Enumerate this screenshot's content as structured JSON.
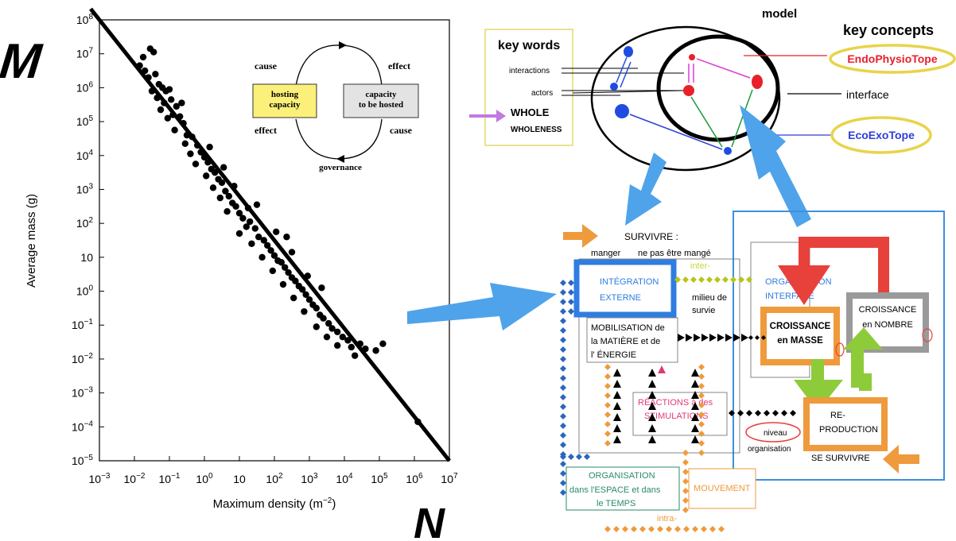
{
  "big_letters": {
    "m": "M",
    "n": "N"
  },
  "chart_data": {
    "type": "scatter",
    "xlabel_main": "Maximum density (m",
    "xlabel_exp": "−2",
    "xlabel_end": ")",
    "ylabel": "Average mass (g)",
    "x_scale": "log",
    "y_scale": "log",
    "xlim": [
      0.001,
      10000000
    ],
    "ylim": [
      1e-05,
      100000000
    ],
    "x_ticks": [
      {
        "value": 0.001,
        "base": "10",
        "exp": "−3"
      },
      {
        "value": 0.01,
        "base": "10",
        "exp": "−2"
      },
      {
        "value": 0.1,
        "base": "10",
        "exp": "−1"
      },
      {
        "value": 1,
        "base": "10",
        "exp": "0"
      },
      {
        "value": 10,
        "base": "10",
        "exp": ""
      },
      {
        "value": 100,
        "base": "10",
        "exp": "2"
      },
      {
        "value": 1000,
        "base": "10",
        "exp": "3"
      },
      {
        "value": 10000,
        "base": "10",
        "exp": "4"
      },
      {
        "value": 100000,
        "base": "10",
        "exp": "5"
      },
      {
        "value": 1000000,
        "base": "10",
        "exp": "6"
      },
      {
        "value": 10000000,
        "base": "10",
        "exp": "7"
      }
    ],
    "y_ticks": [
      {
        "value": 100000000,
        "base": "10",
        "exp": "8"
      },
      {
        "value": 10000000,
        "base": "10",
        "exp": "7"
      },
      {
        "value": 1000000,
        "base": "10",
        "exp": "6"
      },
      {
        "value": 100000,
        "base": "10",
        "exp": "5"
      },
      {
        "value": 10000,
        "base": "10",
        "exp": "4"
      },
      {
        "value": 1000,
        "base": "10",
        "exp": "3"
      },
      {
        "value": 100,
        "base": "10",
        "exp": "2"
      },
      {
        "value": 10,
        "base": "10",
        "exp": ""
      },
      {
        "value": 1,
        "base": "10",
        "exp": "0"
      },
      {
        "value": 0.1,
        "base": "10",
        "exp": "−1"
      },
      {
        "value": 0.01,
        "base": "10",
        "exp": "−2"
      },
      {
        "value": 0.001,
        "base": "10",
        "exp": "−3"
      },
      {
        "value": 0.0001,
        "base": "10",
        "exp": "−4"
      },
      {
        "value": 1e-05,
        "base": "10",
        "exp": "−5"
      }
    ],
    "fit_line": [
      [
        0.001,
        100000000
      ],
      [
        10000000,
        1e-05
      ]
    ],
    "points_log10": [
      [
        -1.55,
        7.15
      ],
      [
        -1.45,
        7.05
      ],
      [
        -1.85,
        6.65
      ],
      [
        -1.7,
        6.5
      ],
      [
        -1.6,
        6.3
      ],
      [
        -1.4,
        6.4
      ],
      [
        -1.3,
        6.1
      ],
      [
        -1.2,
        6.0
      ],
      [
        -1.1,
        5.9
      ],
      [
        -1.0,
        5.95
      ],
      [
        -1.5,
        5.9
      ],
      [
        -1.35,
        5.7
      ],
      [
        -1.15,
        5.55
      ],
      [
        -0.95,
        5.65
      ],
      [
        -0.8,
        5.45
      ],
      [
        -0.9,
        5.2
      ],
      [
        -1.25,
        5.35
      ],
      [
        -1.05,
        5.1
      ],
      [
        -0.7,
        5.15
      ],
      [
        -0.6,
        4.95
      ],
      [
        -0.85,
        4.75
      ],
      [
        -0.5,
        4.6
      ],
      [
        -0.35,
        4.55
      ],
      [
        -0.55,
        4.35
      ],
      [
        -0.2,
        4.3
      ],
      [
        -0.1,
        4.1
      ],
      [
        -0.4,
        4.05
      ],
      [
        0.0,
        3.95
      ],
      [
        0.1,
        3.8
      ],
      [
        -0.25,
        3.75
      ],
      [
        0.2,
        3.6
      ],
      [
        0.3,
        3.5
      ],
      [
        0.05,
        3.4
      ],
      [
        0.4,
        3.3
      ],
      [
        0.5,
        3.2
      ],
      [
        0.25,
        3.05
      ],
      [
        0.6,
        2.95
      ],
      [
        0.45,
        2.75
      ],
      [
        0.7,
        2.8
      ],
      [
        0.8,
        2.6
      ],
      [
        0.9,
        2.5
      ],
      [
        0.65,
        2.35
      ],
      [
        1.0,
        2.3
      ],
      [
        1.1,
        2.15
      ],
      [
        1.3,
        2.05
      ],
      [
        1.2,
        1.9
      ],
      [
        1.45,
        1.85
      ],
      [
        1.0,
        1.7
      ],
      [
        1.55,
        1.6
      ],
      [
        1.7,
        1.5
      ],
      [
        1.35,
        1.4
      ],
      [
        1.8,
        1.35
      ],
      [
        1.9,
        1.2
      ],
      [
        2.0,
        1.05
      ],
      [
        1.65,
        1.0
      ],
      [
        2.1,
        0.9
      ],
      [
        2.2,
        0.85
      ],
      [
        2.3,
        0.7
      ],
      [
        1.95,
        0.6
      ],
      [
        2.4,
        0.55
      ],
      [
        2.5,
        0.4
      ],
      [
        2.6,
        0.3
      ],
      [
        2.25,
        0.2
      ],
      [
        2.7,
        0.15
      ],
      [
        2.8,
        0.05
      ],
      [
        2.9,
        -0.1
      ],
      [
        2.55,
        -0.2
      ],
      [
        3.0,
        -0.25
      ],
      [
        3.1,
        -0.4
      ],
      [
        3.2,
        -0.5
      ],
      [
        2.85,
        -0.6
      ],
      [
        3.3,
        -0.7
      ],
      [
        3.4,
        -0.8
      ],
      [
        3.55,
        -0.95
      ],
      [
        3.2,
        -1.05
      ],
      [
        3.65,
        -1.1
      ],
      [
        3.8,
        -1.2
      ],
      [
        3.5,
        -1.35
      ],
      [
        3.95,
        -1.35
      ],
      [
        4.1,
        -1.45
      ],
      [
        3.8,
        -1.6
      ],
      [
        4.2,
        -1.65
      ],
      [
        4.45,
        -1.55
      ],
      [
        4.6,
        -1.7
      ],
      [
        4.9,
        -1.75
      ],
      [
        5.1,
        -1.55
      ],
      [
        4.3,
        -1.9
      ],
      [
        0.55,
        3.65
      ],
      [
        0.85,
        3.1
      ],
      [
        1.25,
        2.45
      ],
      [
        1.5,
        2.55
      ],
      [
        2.35,
        1.6
      ],
      [
        2.5,
        1.15
      ],
      [
        2.95,
        0.45
      ],
      [
        3.35,
        0.1
      ],
      [
        2.05,
        1.75
      ],
      [
        0.15,
        4.25
      ],
      [
        -0.65,
        5.55
      ],
      [
        -1.75,
        6.9
      ],
      [
        6.1,
        -3.85
      ]
    ]
  },
  "cycle": {
    "cause_top": "cause",
    "effect_top": "effect",
    "hosting": "hosting capacity",
    "hosted": "capacity to be hosted",
    "effect_bottom": "effect",
    "cause_bottom": "cause",
    "governance": "governance"
  },
  "keywords_box": {
    "title": "key words",
    "interactions": "interactions",
    "actors": "actors",
    "whole": "WHOLE",
    "wholeness": "WHOLENESS"
  },
  "model": {
    "title": "model",
    "interface": "interface"
  },
  "key_concepts": {
    "title": "key concepts",
    "endo": "EndoPhysioTope",
    "eco": "EcoExoTope",
    "endo_color": "#e8202a",
    "eco_color": "#2e3fd6",
    "oval_border": "#e8d44a"
  },
  "lower": {
    "survivre": "SURVIVRE :",
    "manger": "manger",
    "ne_pas": "ne pas être mangé",
    "inter": "inter-",
    "integration": "INTÉGRATION",
    "externe": "EXTERNE",
    "milieu1": "milieu de",
    "milieu2": "survie",
    "mobilisation1": "MOBILISATION de",
    "mobilisation2": "la MATIÈRE et de",
    "mobilisation3": "l' ÉNERGIE",
    "organisation_int1": "ORGANISATION",
    "organisation_int2": "INTERFACE",
    "croissance_masse1": "CROISSANCE",
    "croissance_masse2": "en MASSE",
    "croissance_nombre1": "CROISSANCE",
    "croissance_nombre2": "en NOMBRE",
    "reactions1": "RÉACTIONS à des",
    "reactions2": "STIMULATIONS",
    "niveau": "niveau",
    "organisation_word": "organisation",
    "reproduction1": "RE-",
    "reproduction2": "PRODUCTION",
    "se_survivre": "SE SURVIVRE",
    "organisation_espace1": "ORGANISATION",
    "organisation_espace2": "dans l'ESPACE et dans",
    "organisation_espace3": "le TEMPS",
    "mouvement": "MOUVEMENT",
    "intra": "intra-"
  },
  "colors": {
    "arrow_blue": "#4fa3ea",
    "orange": "#ef9a3c",
    "green": "#8ecb3a",
    "red": "#e8403a",
    "grey": "#9a9a9a",
    "blue_frame": "#3d8fe0",
    "navy_diamond": "#2b65c0",
    "pink": "#e0397a",
    "olive": "#b8c41a"
  }
}
